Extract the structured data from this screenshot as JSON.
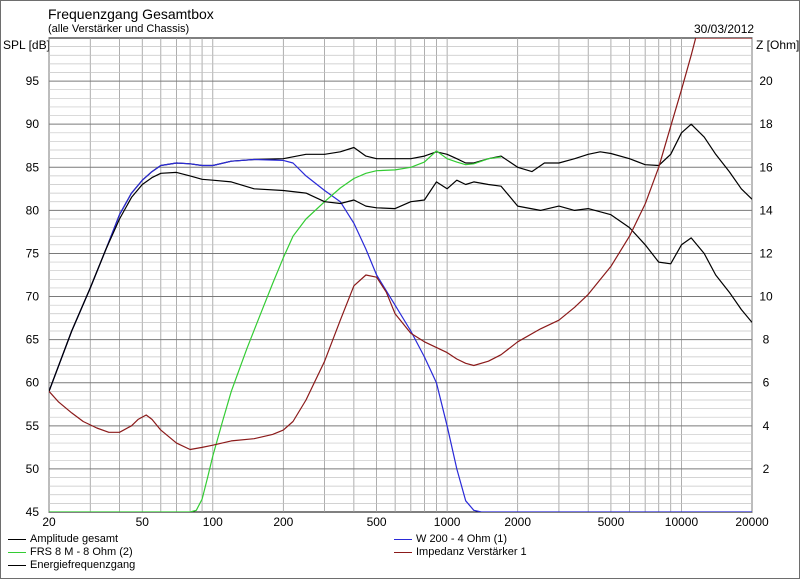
{
  "header": {
    "title": "Frequenzgang Gesamtbox",
    "subtitle": "(alle Verstärker und Chassis)",
    "date": "30/03/2012"
  },
  "chart_data": {
    "type": "line",
    "title": "Frequenzgang Gesamtbox",
    "subtitle": "(alle Verstärker und Chassis)",
    "ylabel": "SPL [dB]",
    "y2label": "Z [Ohm]",
    "xscale": "log",
    "xlim": [
      20,
      20000
    ],
    "ylim": [
      45,
      100
    ],
    "y2lim": [
      0,
      22
    ],
    "grid": true,
    "legend_position": "bottom",
    "x_ticks": [
      "20",
      "50",
      "100",
      "200",
      "500",
      "1000",
      "2000",
      "5000",
      "10000",
      "20000"
    ],
    "x_tick_values": [
      20,
      50,
      100,
      200,
      500,
      1000,
      2000,
      5000,
      10000,
      20000
    ],
    "y_ticks": [
      45,
      50,
      55,
      60,
      65,
      70,
      75,
      80,
      85,
      90,
      95
    ],
    "y2_ticks": [
      2,
      4,
      6,
      8,
      10,
      12,
      14,
      16,
      18,
      20
    ],
    "series": [
      {
        "name": "Amplitude gesamt",
        "color": "#000000",
        "axis": "left",
        "x": [
          20,
          25,
          30,
          35,
          40,
          45,
          50,
          55,
          60,
          70,
          80,
          90,
          100,
          120,
          150,
          200,
          250,
          300,
          350,
          400,
          450,
          500,
          600,
          700,
          800,
          900,
          1000,
          1100,
          1200,
          1300,
          1500,
          1700,
          2000,
          2300,
          2600,
          3000,
          3500,
          4000,
          4500,
          5000,
          6000,
          7000,
          8000,
          9000,
          10000,
          11000,
          12500,
          14000,
          16000,
          18000,
          20000
        ],
        "y": [
          59,
          66,
          71,
          75.5,
          79.5,
          82,
          83.5,
          84.5,
          85.2,
          85.5,
          85.4,
          85.2,
          85.2,
          85.7,
          85.9,
          86.0,
          86.5,
          86.5,
          86.8,
          87.3,
          86.3,
          86.0,
          86.0,
          86.0,
          86.3,
          86.8,
          86.5,
          86.0,
          85.5,
          85.5,
          86.0,
          86.3,
          85.0,
          84.5,
          85.5,
          85.5,
          86.0,
          86.5,
          86.8,
          86.6,
          86.0,
          85.3,
          85.2,
          86.5,
          89,
          90,
          88.5,
          86.5,
          84.5,
          82.5,
          81.3
        ]
      },
      {
        "name": "W 200 - 4 Ohm (1)",
        "color": "#2a2ad8",
        "axis": "left",
        "x": [
          20,
          25,
          30,
          35,
          40,
          45,
          50,
          55,
          60,
          70,
          80,
          90,
          100,
          120,
          150,
          200,
          220,
          250,
          300,
          350,
          400,
          450,
          500,
          600,
          700,
          800,
          900,
          1000,
          1100,
          1200,
          1300,
          1400,
          1600,
          2000,
          5000,
          20000
        ],
        "y": [
          59,
          66,
          71,
          75.5,
          79.5,
          82,
          83.5,
          84.5,
          85.2,
          85.5,
          85.4,
          85.2,
          85.2,
          85.7,
          85.9,
          85.8,
          85.5,
          84.0,
          82.3,
          81.0,
          78.5,
          75.5,
          72.5,
          69.0,
          66.0,
          63.0,
          60.0,
          55.0,
          50.0,
          46.3,
          45.2,
          45.0,
          45.0,
          45.0,
          45.0,
          45.0
        ]
      },
      {
        "name": "FRS 8 M - 8 Ohm (2)",
        "color": "#33cc33",
        "axis": "left",
        "x": [
          20,
          50,
          80,
          85,
          90,
          95,
          100,
          110,
          120,
          140,
          160,
          180,
          200,
          220,
          250,
          300,
          350,
          400,
          450,
          500,
          600,
          700,
          800,
          900,
          1000,
          1100,
          1200,
          1300,
          1400,
          1500,
          1700
        ],
        "y": [
          45,
          45,
          45,
          45.2,
          46.5,
          49.0,
          51.5,
          55.5,
          59.0,
          64.0,
          68.0,
          71.5,
          74.5,
          77.0,
          79.0,
          81.0,
          82.6,
          83.7,
          84.3,
          84.6,
          84.7,
          85.0,
          85.6,
          86.9,
          86.0,
          85.6,
          85.3,
          85.4,
          85.7,
          86.0,
          86.2
        ]
      },
      {
        "name": "Energiefrequenzgang",
        "color": "#000000",
        "axis": "left",
        "x": [
          20,
          25,
          30,
          35,
          40,
          45,
          50,
          55,
          60,
          70,
          80,
          90,
          100,
          120,
          150,
          200,
          250,
          300,
          350,
          400,
          450,
          500,
          600,
          700,
          800,
          900,
          1000,
          1100,
          1200,
          1300,
          1500,
          1700,
          2000,
          2500,
          3000,
          3500,
          4000,
          5000,
          6000,
          7000,
          8000,
          9000,
          10000,
          11000,
          12500,
          14000,
          16000,
          18000,
          20000
        ],
        "y": [
          59,
          66,
          71,
          75.5,
          79.0,
          81.5,
          83.0,
          83.8,
          84.3,
          84.4,
          84.0,
          83.6,
          83.5,
          83.3,
          82.5,
          82.3,
          82.0,
          81.0,
          80.8,
          81.2,
          80.5,
          80.3,
          80.2,
          81.0,
          81.2,
          83.3,
          82.5,
          83.5,
          83.0,
          83.3,
          83.0,
          82.8,
          80.5,
          80.0,
          80.5,
          80.0,
          80.2,
          79.5,
          78.0,
          76.0,
          74.0,
          73.8,
          76.0,
          76.8,
          75.0,
          72.5,
          70.5,
          68.5,
          67.0
        ]
      },
      {
        "name": "Impedanz Verstärker 1",
        "color": "#8b1a1a",
        "axis": "right",
        "x": [
          20,
          22,
          25,
          28,
          32,
          36,
          40,
          45,
          48,
          52,
          55,
          60,
          70,
          80,
          90,
          100,
          120,
          150,
          180,
          200,
          220,
          250,
          300,
          350,
          400,
          450,
          500,
          550,
          600,
          700,
          800,
          1000,
          1100,
          1200,
          1300,
          1500,
          1700,
          2000,
          2500,
          3000,
          3500,
          4000,
          5000,
          6000,
          7000,
          8000,
          9000,
          10000,
          11000,
          11500,
          12000,
          15000,
          20000
        ],
        "y": [
          5.6,
          5.1,
          4.6,
          4.2,
          3.9,
          3.7,
          3.7,
          4.0,
          4.3,
          4.5,
          4.3,
          3.8,
          3.2,
          2.9,
          3.0,
          3.1,
          3.3,
          3.4,
          3.6,
          3.8,
          4.2,
          5.2,
          7.0,
          8.9,
          10.5,
          11.0,
          10.9,
          10.2,
          9.2,
          8.3,
          7.9,
          7.4,
          7.1,
          6.9,
          6.8,
          7.0,
          7.3,
          7.9,
          8.5,
          8.9,
          9.5,
          10.1,
          11.4,
          12.8,
          14.3,
          16.0,
          17.9,
          19.6,
          21.2,
          22.0,
          22.0,
          22.0,
          22.0
        ]
      }
    ]
  }
}
